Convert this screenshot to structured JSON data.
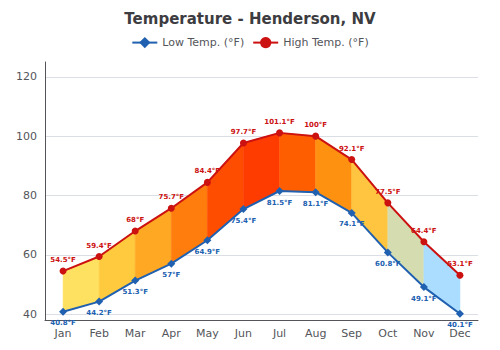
{
  "chart_data": {
    "type": "line",
    "title": "Temperature - Henderson, NV",
    "categories": [
      "Jan",
      "Feb",
      "Mar",
      "Apr",
      "May",
      "Jun",
      "Jul",
      "Aug",
      "Sep",
      "Oct",
      "Nov",
      "Dec"
    ],
    "series": [
      {
        "name": "Low Temp. (°F)",
        "color": "#2060b0",
        "marker": "diamond",
        "values": [
          40.8,
          44.2,
          51.3,
          57.0,
          64.9,
          75.4,
          81.5,
          81.1,
          74.1,
          60.8,
          49.1,
          40.1
        ],
        "value_labels": [
          "40.8°F",
          "44.2°F",
          "51.3°F",
          "57°F",
          "64.9°F",
          "75.4°F",
          "81.5°F",
          "81.1°F",
          "74.1°F",
          "60.8°F",
          "49.1°F",
          "40.1°F"
        ]
      },
      {
        "name": "High Temp. (°F)",
        "color": "#cc1111",
        "marker": "circle",
        "values": [
          54.5,
          59.4,
          68.0,
          75.7,
          84.4,
          97.7,
          101.1,
          100.0,
          92.1,
          77.5,
          64.4,
          53.1
        ],
        "value_labels": [
          "54.5°F",
          "59.4°F",
          "68°F",
          "75.7°F",
          "84.4°F",
          "97.7°F",
          "101.1°F",
          "100°F",
          "92.1°F",
          "77.5°F",
          "64.4°F",
          "53.1°F"
        ]
      }
    ],
    "colors": [
      "#ffe162",
      "#ffca3d",
      "#ffa824",
      "#ff7d0c",
      "#ff4d00",
      "#ff3c00",
      "#ff5e00",
      "#ff9110",
      "#ffc440",
      "#d5ddb0",
      "#aaddff"
    ],
    "ylim": [
      38,
      125
    ],
    "yticks": [
      40,
      60,
      80,
      100,
      120
    ],
    "grid": true,
    "legend": "top",
    "data_labels": true
  }
}
